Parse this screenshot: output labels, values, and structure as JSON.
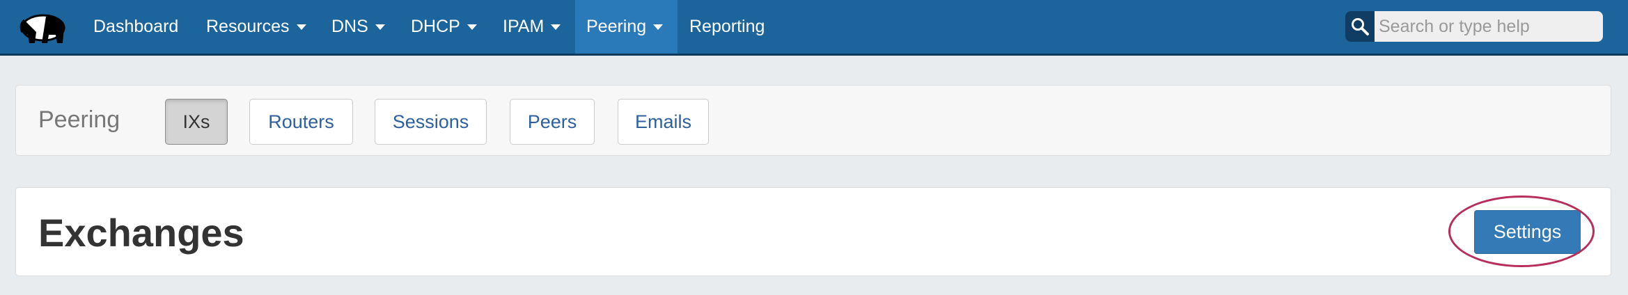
{
  "nav": {
    "items": [
      {
        "label": "Dashboard",
        "dropdown": false
      },
      {
        "label": "Resources",
        "dropdown": true
      },
      {
        "label": "DNS",
        "dropdown": true
      },
      {
        "label": "DHCP",
        "dropdown": true
      },
      {
        "label": "IPAM",
        "dropdown": true
      },
      {
        "label": "Peering",
        "dropdown": true,
        "active": true
      },
      {
        "label": "Reporting",
        "dropdown": false
      }
    ],
    "search_placeholder": "Search or type help"
  },
  "subnav": {
    "label": "Peering",
    "buttons": [
      {
        "label": "IXs",
        "active": true
      },
      {
        "label": "Routers"
      },
      {
        "label": "Sessions"
      },
      {
        "label": "Peers"
      },
      {
        "label": "Emails"
      }
    ]
  },
  "main": {
    "title": "Exchanges",
    "settings_label": "Settings"
  },
  "colors": {
    "navbar": "#1b659c",
    "nav_active": "#2a7aba",
    "primary": "#337ab7",
    "highlight": "#b82d5a"
  }
}
